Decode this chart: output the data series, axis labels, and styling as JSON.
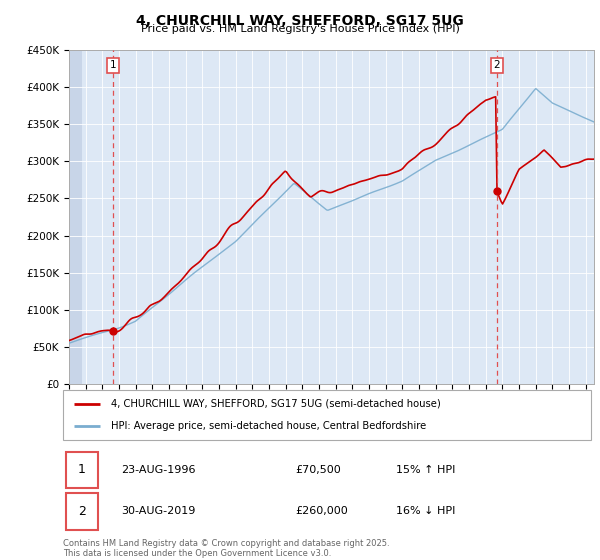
{
  "title": "4, CHURCHILL WAY, SHEFFORD, SG17 5UG",
  "subtitle": "Price paid vs. HM Land Registry's House Price Index (HPI)",
  "legend_line1": "4, CHURCHILL WAY, SHEFFORD, SG17 5UG (semi-detached house)",
  "legend_line2": "HPI: Average price, semi-detached house, Central Bedfordshire",
  "sale1_date": "23-AUG-1996",
  "sale1_price": "£70,500",
  "sale1_hpi": "15% ↑ HPI",
  "sale2_date": "30-AUG-2019",
  "sale2_price": "£260,000",
  "sale2_hpi": "16% ↓ HPI",
  "footer": "Contains HM Land Registry data © Crown copyright and database right 2025.\nThis data is licensed under the Open Government Licence v3.0.",
  "red_color": "#cc0000",
  "blue_color": "#7aadcf",
  "dashed_red": "#e05050",
  "background_chart": "#dde8f5",
  "background_hatch": "#c8d5e8",
  "ylim": [
    0,
    450000
  ],
  "yticks": [
    0,
    50000,
    100000,
    150000,
    200000,
    250000,
    300000,
    350000,
    400000,
    450000
  ],
  "sale1_x": 1996.65,
  "sale1_y": 70500,
  "sale2_x": 2019.66,
  "sale2_y": 260000,
  "xmin": 1994,
  "xmax": 2025.5,
  "hatch_end": 1994.8
}
